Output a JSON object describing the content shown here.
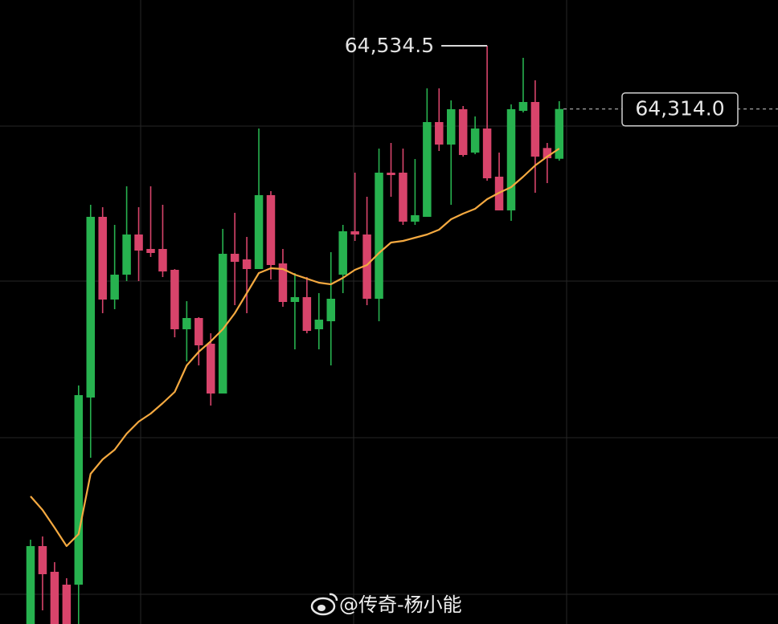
{
  "chart_data": {
    "type": "candlestick",
    "ylim": [
      62518.4,
      64694
    ],
    "up_color": "#27b24f",
    "down_color": "#d8446b",
    "open": [
      62518.4,
      62790,
      62700.4,
      62655.6,
      62655.6,
      63308,
      63938,
      63649.6,
      63736.4,
      63876.4,
      63826,
      63826,
      63753.2,
      63546,
      63585.2,
      63495.6,
      63322,
      63809.2,
      63789.6,
      63756,
      64013.6,
      63775.6,
      63641.2,
      63658,
      63546,
      63574,
      63736.4,
      63887.6,
      63876.4,
      63652.4,
      64092,
      64092,
      63921.2,
      63938,
      64268.4,
      64190,
      64313.2,
      64162,
      64246,
      64078,
      63960.4,
      64307.6,
      64338.4,
      64178,
      64140.4
    ],
    "high": [
      62812.4,
      62823.6,
      62734,
      62678,
      63350,
      63980,
      63971.6,
      63910,
      64044.4,
      63971.6,
      64044.4,
      63980,
      63756,
      63644,
      63588,
      63532,
      63896,
      63952,
      63868,
      64246,
      64027.6,
      63826,
      63742,
      63728,
      63672,
      63814.8,
      63910,
      64092,
      64008,
      64176,
      64195.6,
      64176,
      64139.6,
      64386,
      64386,
      64344,
      64324.4,
      64288,
      64534.5,
      64162,
      64330,
      64492.4,
      64414,
      64195.6,
      64341.2
    ],
    "low": [
      62518.4,
      62566,
      62518.4,
      62518.4,
      62518.4,
      63098,
      63602,
      63616,
      63714,
      63714,
      63798,
      63728,
      63518,
      63434,
      63420,
      63280,
      63322,
      63630,
      63602,
      63756,
      63719.6,
      63624.4,
      63476,
      63532,
      63476,
      63420,
      63672,
      63854,
      63630,
      63574,
      64008,
      63910,
      63910,
      63938,
      64167.6,
      63980,
      64148,
      64156.4,
      64064,
      63960.4,
      63924,
      64302,
      64022,
      64055.6,
      64134
    ],
    "close": [
      62790,
      62692,
      62518.4,
      62518.4,
      63316.4,
      63938,
      63649.6,
      63736.4,
      63876.4,
      63820.4,
      63812,
      63747.6,
      63546,
      63585.2,
      63490,
      63322,
      63809.2,
      63781.2,
      63756,
      64013.6,
      63770,
      63641.2,
      63658,
      63540.4,
      63579.6,
      63652.4,
      63887.6,
      63876.4,
      63652.4,
      64092,
      64083.6,
      63921.2,
      63943.6,
      64268.4,
      64190,
      64313.2,
      64153.6,
      64246,
      64072.4,
      63960.4,
      64313.2,
      64338.4,
      64148,
      64142.4,
      64314
    ],
    "moving_average": {
      "color": "#f4a940",
      "values": [
        62963.6,
        62916,
        62854.4,
        62790,
        62832,
        63042,
        63092.4,
        63126,
        63182,
        63224,
        63252,
        63288.4,
        63327.6,
        63420,
        63467.6,
        63504,
        63546,
        63602,
        63672,
        63742,
        63758.8,
        63756,
        63736.4,
        63722.4,
        63708.4,
        63702.8,
        63725.2,
        63753.2,
        63770,
        63812,
        63848.4,
        63854,
        63865.2,
        63876.4,
        63893.2,
        63929.6,
        63949.2,
        63966,
        63999.6,
        64022,
        64041.6,
        64078,
        64117.2,
        64148,
        64176
      ]
    },
    "annotations": [
      {
        "value": 64534.5,
        "label": "64,534.5"
      },
      {
        "value": 64314.0,
        "label": "64,314.0"
      }
    ]
  },
  "watermark": "@传奇-杨小能"
}
